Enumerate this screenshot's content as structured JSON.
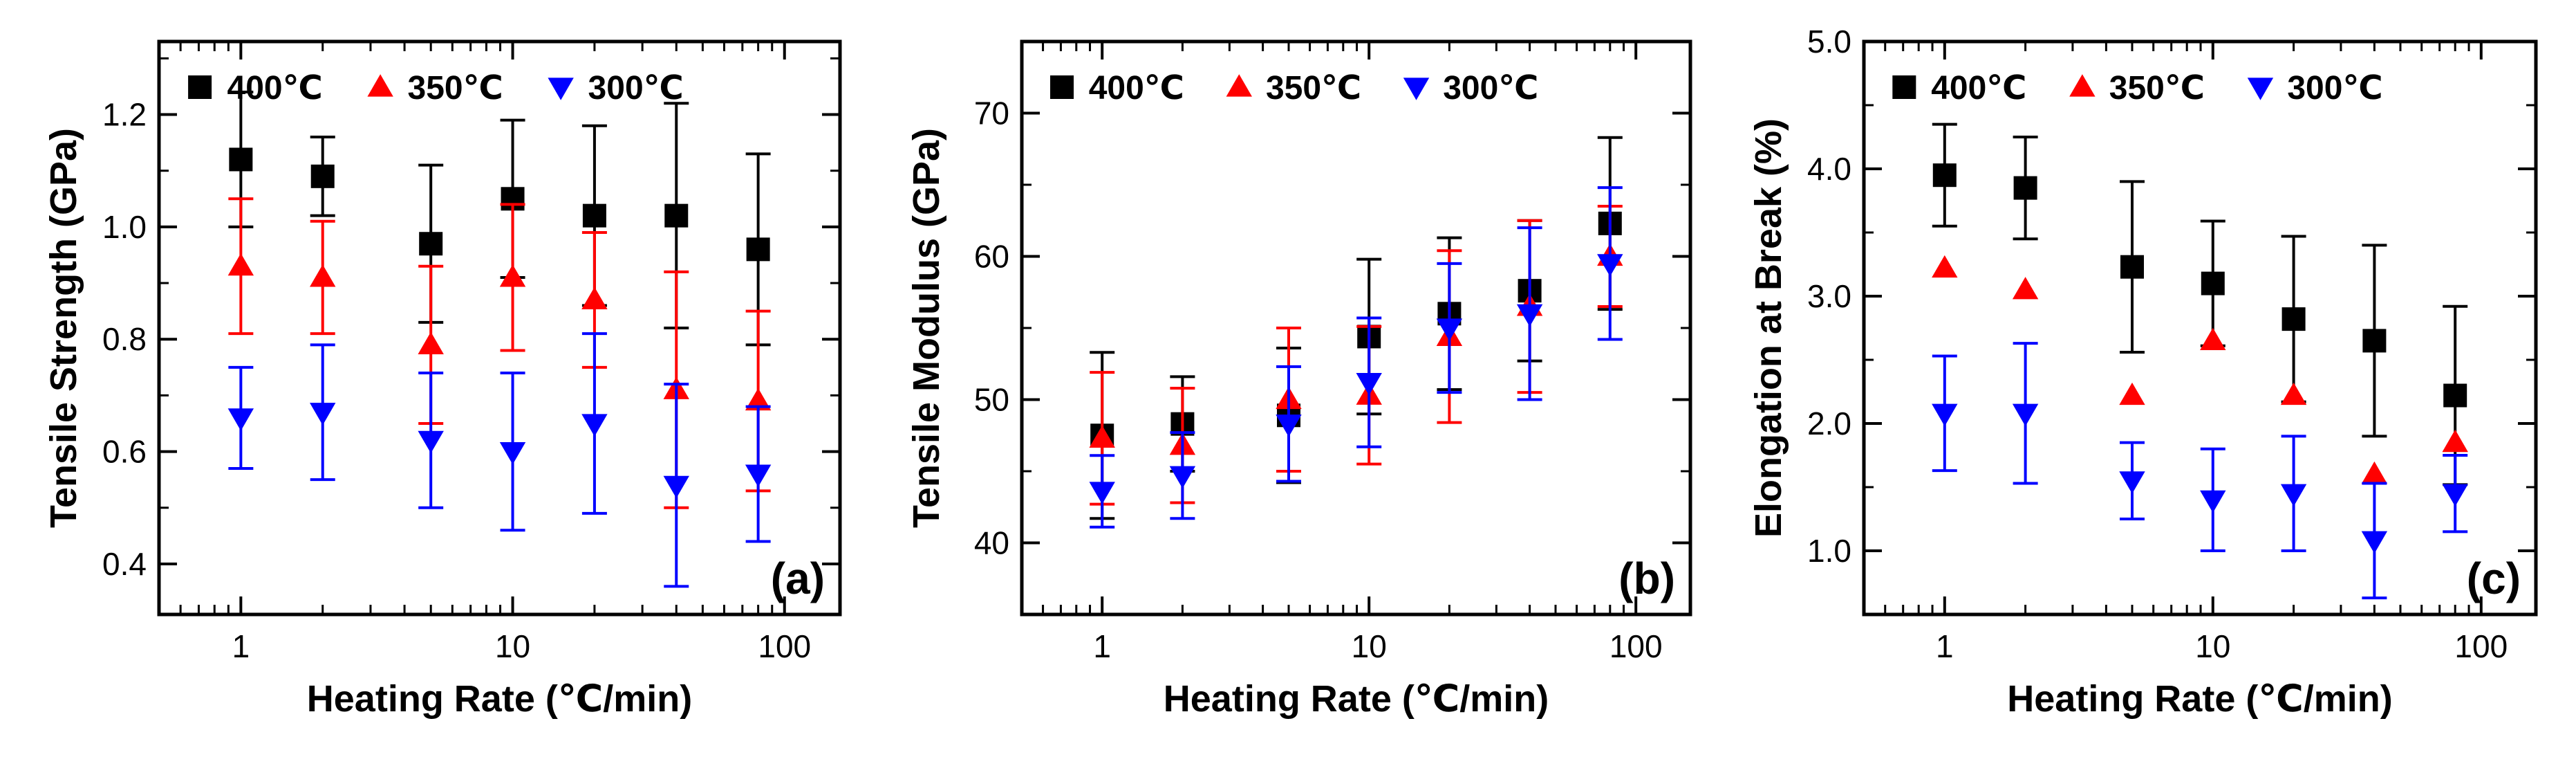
{
  "figure": {
    "colors": {
      "400": "#000000",
      "350": "#ff0000",
      "300": "#0000ff"
    },
    "markers": {
      "400": "square",
      "350": "triangle-up",
      "300": "triangle-down"
    }
  },
  "chart_data": [
    {
      "type": "scatter",
      "panel_label": "(a)",
      "xlabel": "Heating Rate (℃/min)",
      "ylabel": "Tensile Strength (GPa)",
      "xscale": "log",
      "xlim": [
        0.5,
        160
      ],
      "ylim": [
        0.31,
        1.33
      ],
      "xticks": [
        {
          "value": 1,
          "label": "1"
        },
        {
          "value": 10,
          "label": "10"
        },
        {
          "value": 100,
          "label": "100"
        }
      ],
      "yticks": [
        {
          "value": 0.4,
          "label": "0.4"
        },
        {
          "value": 0.6,
          "label": "0.6"
        },
        {
          "value": 0.8,
          "label": "0.8"
        },
        {
          "value": 1.0,
          "label": "1.0"
        },
        {
          "value": 1.2,
          "label": "1.2"
        }
      ],
      "legend_position": "top",
      "series": [
        {
          "name": "400℃",
          "key": "400",
          "x": [
            1,
            2,
            5,
            10,
            20,
            40,
            80
          ],
          "values": [
            1.12,
            1.09,
            0.97,
            1.05,
            1.02,
            1.02,
            0.96
          ],
          "err": [
            0.12,
            0.07,
            0.14,
            0.14,
            0.16,
            0.2,
            0.17
          ]
        },
        {
          "name": "350℃",
          "key": "350",
          "x": [
            1,
            2,
            5,
            10,
            20,
            40,
            80
          ],
          "values": [
            0.93,
            0.91,
            0.79,
            0.91,
            0.87,
            0.71,
            0.69
          ],
          "err": [
            0.12,
            0.1,
            0.14,
            0.13,
            0.12,
            0.21,
            0.16
          ]
        },
        {
          "name": "300℃",
          "key": "300",
          "x": [
            1,
            2,
            5,
            10,
            20,
            40,
            80
          ],
          "values": [
            0.66,
            0.67,
            0.62,
            0.6,
            0.65,
            0.54,
            0.56
          ],
          "err": [
            0.09,
            0.12,
            0.12,
            0.14,
            0.16,
            0.18,
            0.12
          ]
        }
      ]
    },
    {
      "type": "scatter",
      "panel_label": "(b)",
      "xlabel": "Heating Rate (℃/min)",
      "ylabel": "Tensile Modulus (GPa)",
      "xscale": "log",
      "xlim": [
        0.5,
        160
      ],
      "ylim": [
        35,
        75
      ],
      "xticks": [
        {
          "value": 1,
          "label": "1"
        },
        {
          "value": 10,
          "label": "10"
        },
        {
          "value": 100,
          "label": "100"
        }
      ],
      "yticks": [
        {
          "value": 40,
          "label": "40"
        },
        {
          "value": 50,
          "label": "50"
        },
        {
          "value": 60,
          "label": "60"
        },
        {
          "value": 70,
          "label": "70"
        }
      ],
      "legend_position": "top",
      "series": [
        {
          "name": "400℃",
          "key": "400",
          "x": [
            1,
            2,
            5,
            10,
            20,
            40,
            80
          ],
          "values": [
            47.5,
            48.3,
            48.9,
            54.4,
            56.0,
            57.6,
            62.3
          ],
          "err": [
            5.8,
            3.3,
            4.7,
            5.4,
            5.3,
            4.9,
            6.0
          ]
        },
        {
          "name": "350℃",
          "key": "350",
          "x": [
            1,
            2,
            5,
            10,
            20,
            40,
            80
          ],
          "values": [
            47.3,
            46.8,
            50.0,
            50.3,
            54.4,
            56.5,
            60.0
          ],
          "err": [
            4.6,
            4.0,
            5.0,
            4.8,
            6.0,
            6.0,
            3.5
          ]
        },
        {
          "name": "300℃",
          "key": "300",
          "x": [
            1,
            2,
            5,
            10,
            20,
            40,
            80
          ],
          "values": [
            43.6,
            44.7,
            48.3,
            51.2,
            55.0,
            56.0,
            59.5
          ],
          "err": [
            2.5,
            3.0,
            4.0,
            4.5,
            4.5,
            6.0,
            5.3
          ]
        }
      ]
    },
    {
      "type": "scatter",
      "panel_label": "(c)",
      "xlabel": "Heating Rate (℃/min)",
      "ylabel": "Elongation at Break (%)",
      "xscale": "log",
      "xlim": [
        0.5,
        160
      ],
      "ylim": [
        0.5,
        5.0
      ],
      "xticks": [
        {
          "value": 1,
          "label": "1"
        },
        {
          "value": 10,
          "label": "10"
        },
        {
          "value": 100,
          "label": "100"
        }
      ],
      "yticks": [
        {
          "value": 1.0,
          "label": "1.0"
        },
        {
          "value": 2.0,
          "label": "2.0"
        },
        {
          "value": 3.0,
          "label": "3.0"
        },
        {
          "value": 4.0,
          "label": "4.0"
        },
        {
          "value": 5.0,
          "label": "5.0"
        }
      ],
      "legend_position": "top",
      "series": [
        {
          "name": "400℃",
          "key": "400",
          "x": [
            1,
            2,
            5,
            10,
            20,
            40,
            80
          ],
          "values": [
            3.95,
            3.85,
            3.23,
            3.1,
            2.82,
            2.65,
            2.22
          ],
          "err": [
            0.4,
            0.4,
            0.67,
            0.49,
            0.65,
            0.75,
            0.7
          ]
        },
        {
          "name": "350℃",
          "key": "350",
          "x": [
            1,
            2,
            5,
            10,
            20,
            40,
            80
          ],
          "values": [
            3.22,
            3.05,
            2.22,
            2.65,
            2.22,
            1.6,
            1.85
          ]
        },
        {
          "name": "300℃",
          "key": "300",
          "x": [
            1,
            2,
            5,
            10,
            20,
            40,
            80
          ],
          "values": [
            2.08,
            2.08,
            1.55,
            1.4,
            1.45,
            1.08,
            1.45
          ],
          "err": [
            0.45,
            0.55,
            0.3,
            0.4,
            0.45,
            0.45,
            0.3
          ]
        }
      ]
    }
  ]
}
